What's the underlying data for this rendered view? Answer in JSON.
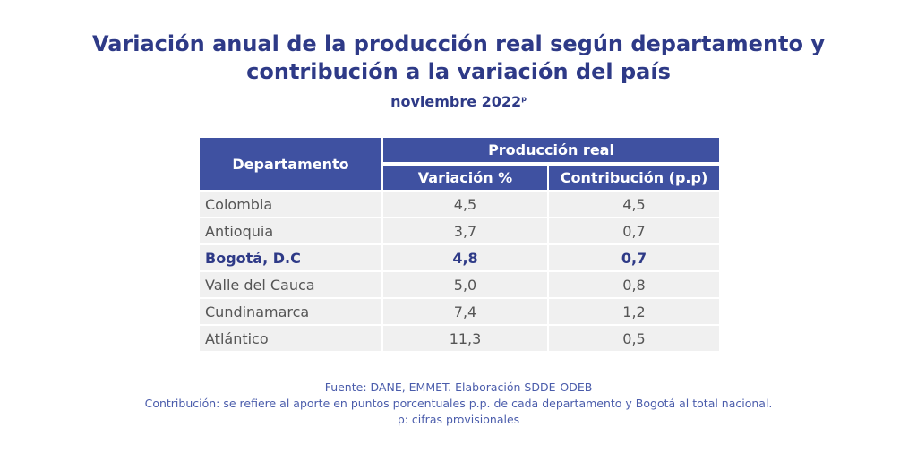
{
  "title": {
    "line1": "Variación anual de la producción real según departamento y",
    "line2": "contribución a la variación del país"
  },
  "subtitle": {
    "text": "noviembre 2022",
    "superscript": "p"
  },
  "table": {
    "header": {
      "col1": "Departamento",
      "group": "Producción real",
      "col2": "Variación  %",
      "col3": "Contribución (p.p)"
    },
    "rows": [
      {
        "name": "Colombia",
        "variation": "4,5",
        "contribution": "4,5",
        "highlight": false
      },
      {
        "name": "Antioquia",
        "variation": "3,7",
        "contribution": "0,7",
        "highlight": false
      },
      {
        "name": "Bogotá, D.C",
        "variation": "4,8",
        "contribution": "0,7",
        "highlight": true
      },
      {
        "name": "Valle del Cauca",
        "variation": "5,0",
        "contribution": "0,8",
        "highlight": false
      },
      {
        "name": "Cundinamarca",
        "variation": "7,4",
        "contribution": "1,2",
        "highlight": false
      },
      {
        "name": "Atlántico",
        "variation": "11,3",
        "contribution": "0,5",
        "highlight": false
      }
    ]
  },
  "notes": {
    "source": "Fuente: DANE, EMMET. Elaboración SDDE-ODEB",
    "contribution": "Contribución: se refiere al aporte en puntos porcentuales p.p. de cada departamento y Bogotá al total nacional.",
    "provisional": "p: cifras provisionales"
  },
  "colors": {
    "title": "#2e3a87",
    "header_bg": "#3f51a1",
    "row_bg": "#f0f0f0",
    "notes": "#4a5cab"
  }
}
